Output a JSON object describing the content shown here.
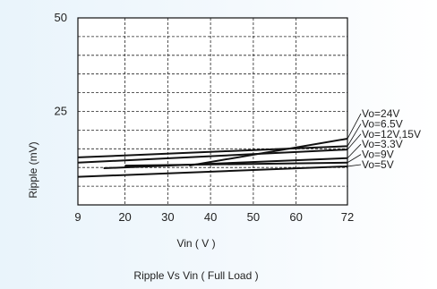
{
  "chart_data": {
    "type": "line",
    "title": "Ripple  Vs Vin ( Full Load )",
    "xlabel": "Vin ( V )",
    "ylabel": "Ripple (mV)",
    "xlim": [
      9,
      72
    ],
    "ylim": [
      0,
      50
    ],
    "x_ticks": [
      "9",
      "20",
      "30",
      "40",
      "50",
      "60",
      "72"
    ],
    "y_ticks": [
      "25",
      "50"
    ],
    "grid": true,
    "legend_position": "right",
    "series": [
      {
        "name": "Vo=24V",
        "points": [
          [
            35,
            10.5
          ],
          [
            72,
            17.7
          ]
        ]
      },
      {
        "name": "Vo=6.5V",
        "points": [
          [
            9,
            12.7
          ],
          [
            72,
            15.7
          ]
        ]
      },
      {
        "name": "Vo=12V,15V",
        "points": [
          [
            9,
            11.3
          ],
          [
            72,
            14.8
          ]
        ]
      },
      {
        "name": "Vo=3.3V",
        "points": [
          [
            15,
            9.8
          ],
          [
            72,
            12.5
          ]
        ]
      },
      {
        "name": "Vo=9V",
        "points": [
          [
            20,
            10.5
          ],
          [
            72,
            11.3
          ]
        ]
      },
      {
        "name": "Vo=5V",
        "points": [
          [
            9,
            7.5
          ],
          [
            72,
            10.3
          ]
        ]
      }
    ]
  }
}
